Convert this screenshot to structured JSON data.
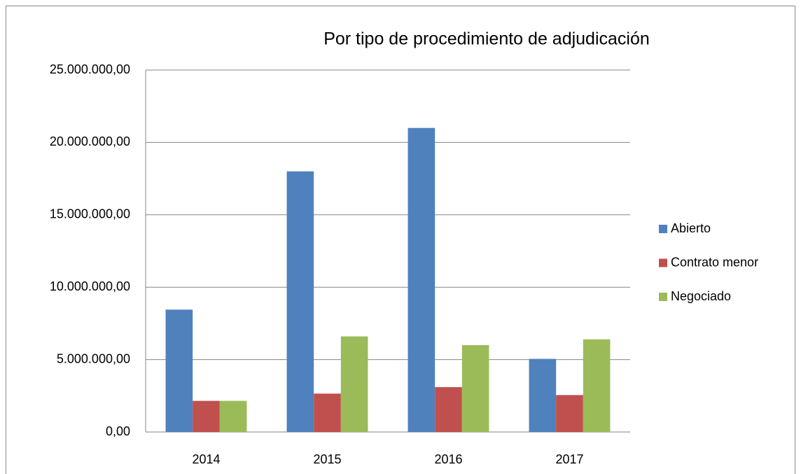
{
  "chart_data": {
    "type": "bar",
    "title": "Por tipo de procedimiento de adjudicación",
    "categories": [
      "2014",
      "2015",
      "2016",
      "2017"
    ],
    "series": [
      {
        "name": "Abierto",
        "color": "#4f81bd",
        "values": [
          8450000,
          18000000,
          21000000,
          5050000
        ]
      },
      {
        "name": "Contrato menor",
        "color": "#c0504d",
        "values": [
          2150000,
          2650000,
          3100000,
          2550000
        ]
      },
      {
        "name": "Negociado",
        "color": "#9bbb59",
        "values": [
          2150000,
          6600000,
          6000000,
          6400000
        ]
      }
    ],
    "ylim": [
      0,
      25000000
    ],
    "yticks": [
      {
        "value": 0,
        "label": "0,00"
      },
      {
        "value": 5000000,
        "label": "5.000.000,00"
      },
      {
        "value": 10000000,
        "label": "10.000.000,00"
      },
      {
        "value": 15000000,
        "label": "15.000.000,00"
      },
      {
        "value": 20000000,
        "label": "20.000.000,00"
      },
      {
        "value": 25000000,
        "label": "25.000.000,00"
      }
    ],
    "grid": true,
    "legend": "right"
  }
}
